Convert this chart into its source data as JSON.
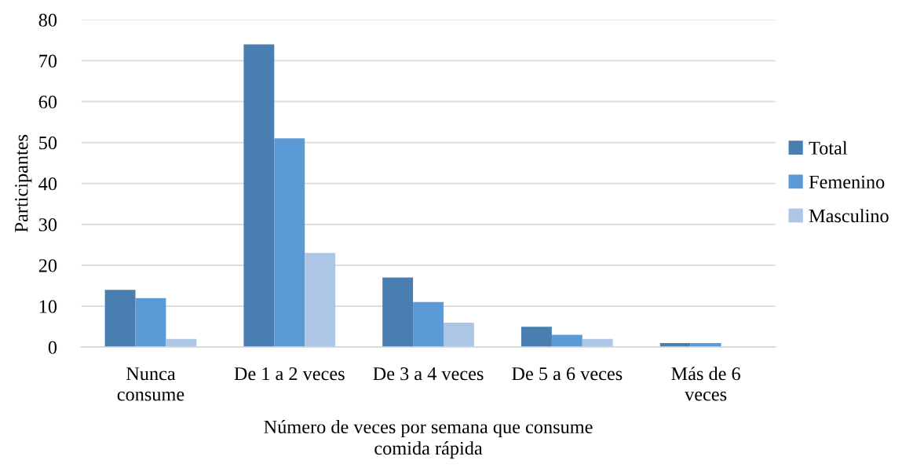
{
  "chart_data": {
    "type": "bar",
    "xlabel": "Número de veces por semana que consume\ncomida rápida",
    "ylabel": "Participantes",
    "categories": [
      "Nunca\nconsume",
      "De 1 a 2 veces",
      "De 3 a 4 veces",
      "De 5 a 6 veces",
      "Más de 6\nveces"
    ],
    "series": [
      {
        "name": "Total",
        "color": "#4a7eb0",
        "values": [
          14,
          74,
          17,
          5,
          1
        ]
      },
      {
        "name": "Femenino",
        "color": "#5b9bd5",
        "values": [
          12,
          51,
          11,
          3,
          1
        ]
      },
      {
        "name": "Masculino",
        "color": "#adc6e5",
        "values": [
          2,
          23,
          6,
          2,
          0
        ]
      }
    ],
    "ylim": [
      0,
      80
    ],
    "yticks": [
      0,
      10,
      20,
      30,
      40,
      50,
      60,
      70,
      80
    ],
    "grid": "y",
    "legend": "right"
  }
}
